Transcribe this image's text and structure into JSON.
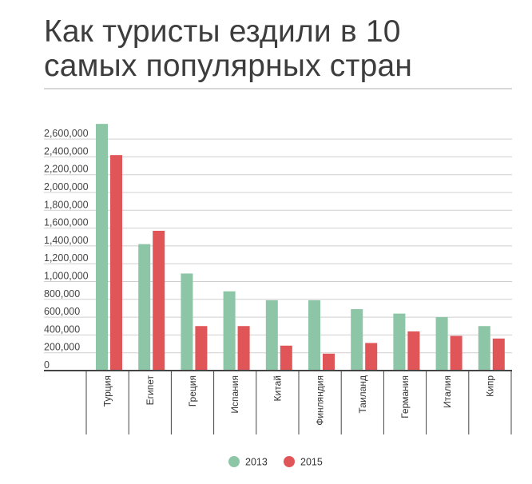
{
  "title_line1": "Как туристы ездили в 10",
  "title_line2": "самых популярных стран",
  "colors": {
    "series_2013": "#8cc6a6",
    "series_2015": "#e05558",
    "grid": "#cfcfcf",
    "axis": "#444444"
  },
  "chart_data": {
    "type": "bar",
    "title": "Как туристы ездили в 10 самых популярных стран",
    "xlabel": "",
    "ylabel": "",
    "ylim": [
      0,
      2700000
    ],
    "yticks": [
      0,
      200000,
      400000,
      600000,
      800000,
      1000000,
      1200000,
      1400000,
      1600000,
      1800000,
      2000000,
      2200000,
      2400000,
      2600000
    ],
    "ytick_labels": [
      "0",
      "200,000",
      "400,000",
      "600,000",
      "800,000",
      "1,000,000",
      "1,200,000",
      "1,400,000",
      "1,600,000",
      "1,800,000",
      "2,000,000",
      "2,200,000",
      "2,400,000",
      "2,600,000"
    ],
    "categories": [
      "Турция",
      "Египет",
      "Греция",
      "Испания",
      "Китай",
      "Финляндия",
      "Таиланд",
      "Германия",
      "Италия",
      "Кипр"
    ],
    "series": [
      {
        "name": "2013",
        "values": [
          2770000,
          1420000,
          1090000,
          890000,
          790000,
          790000,
          690000,
          640000,
          600000,
          500000
        ]
      },
      {
        "name": "2015",
        "values": [
          2420000,
          1570000,
          500000,
          500000,
          280000,
          190000,
          310000,
          440000,
          390000,
          360000
        ]
      }
    ],
    "grid": true,
    "legend": "bottom-center"
  }
}
